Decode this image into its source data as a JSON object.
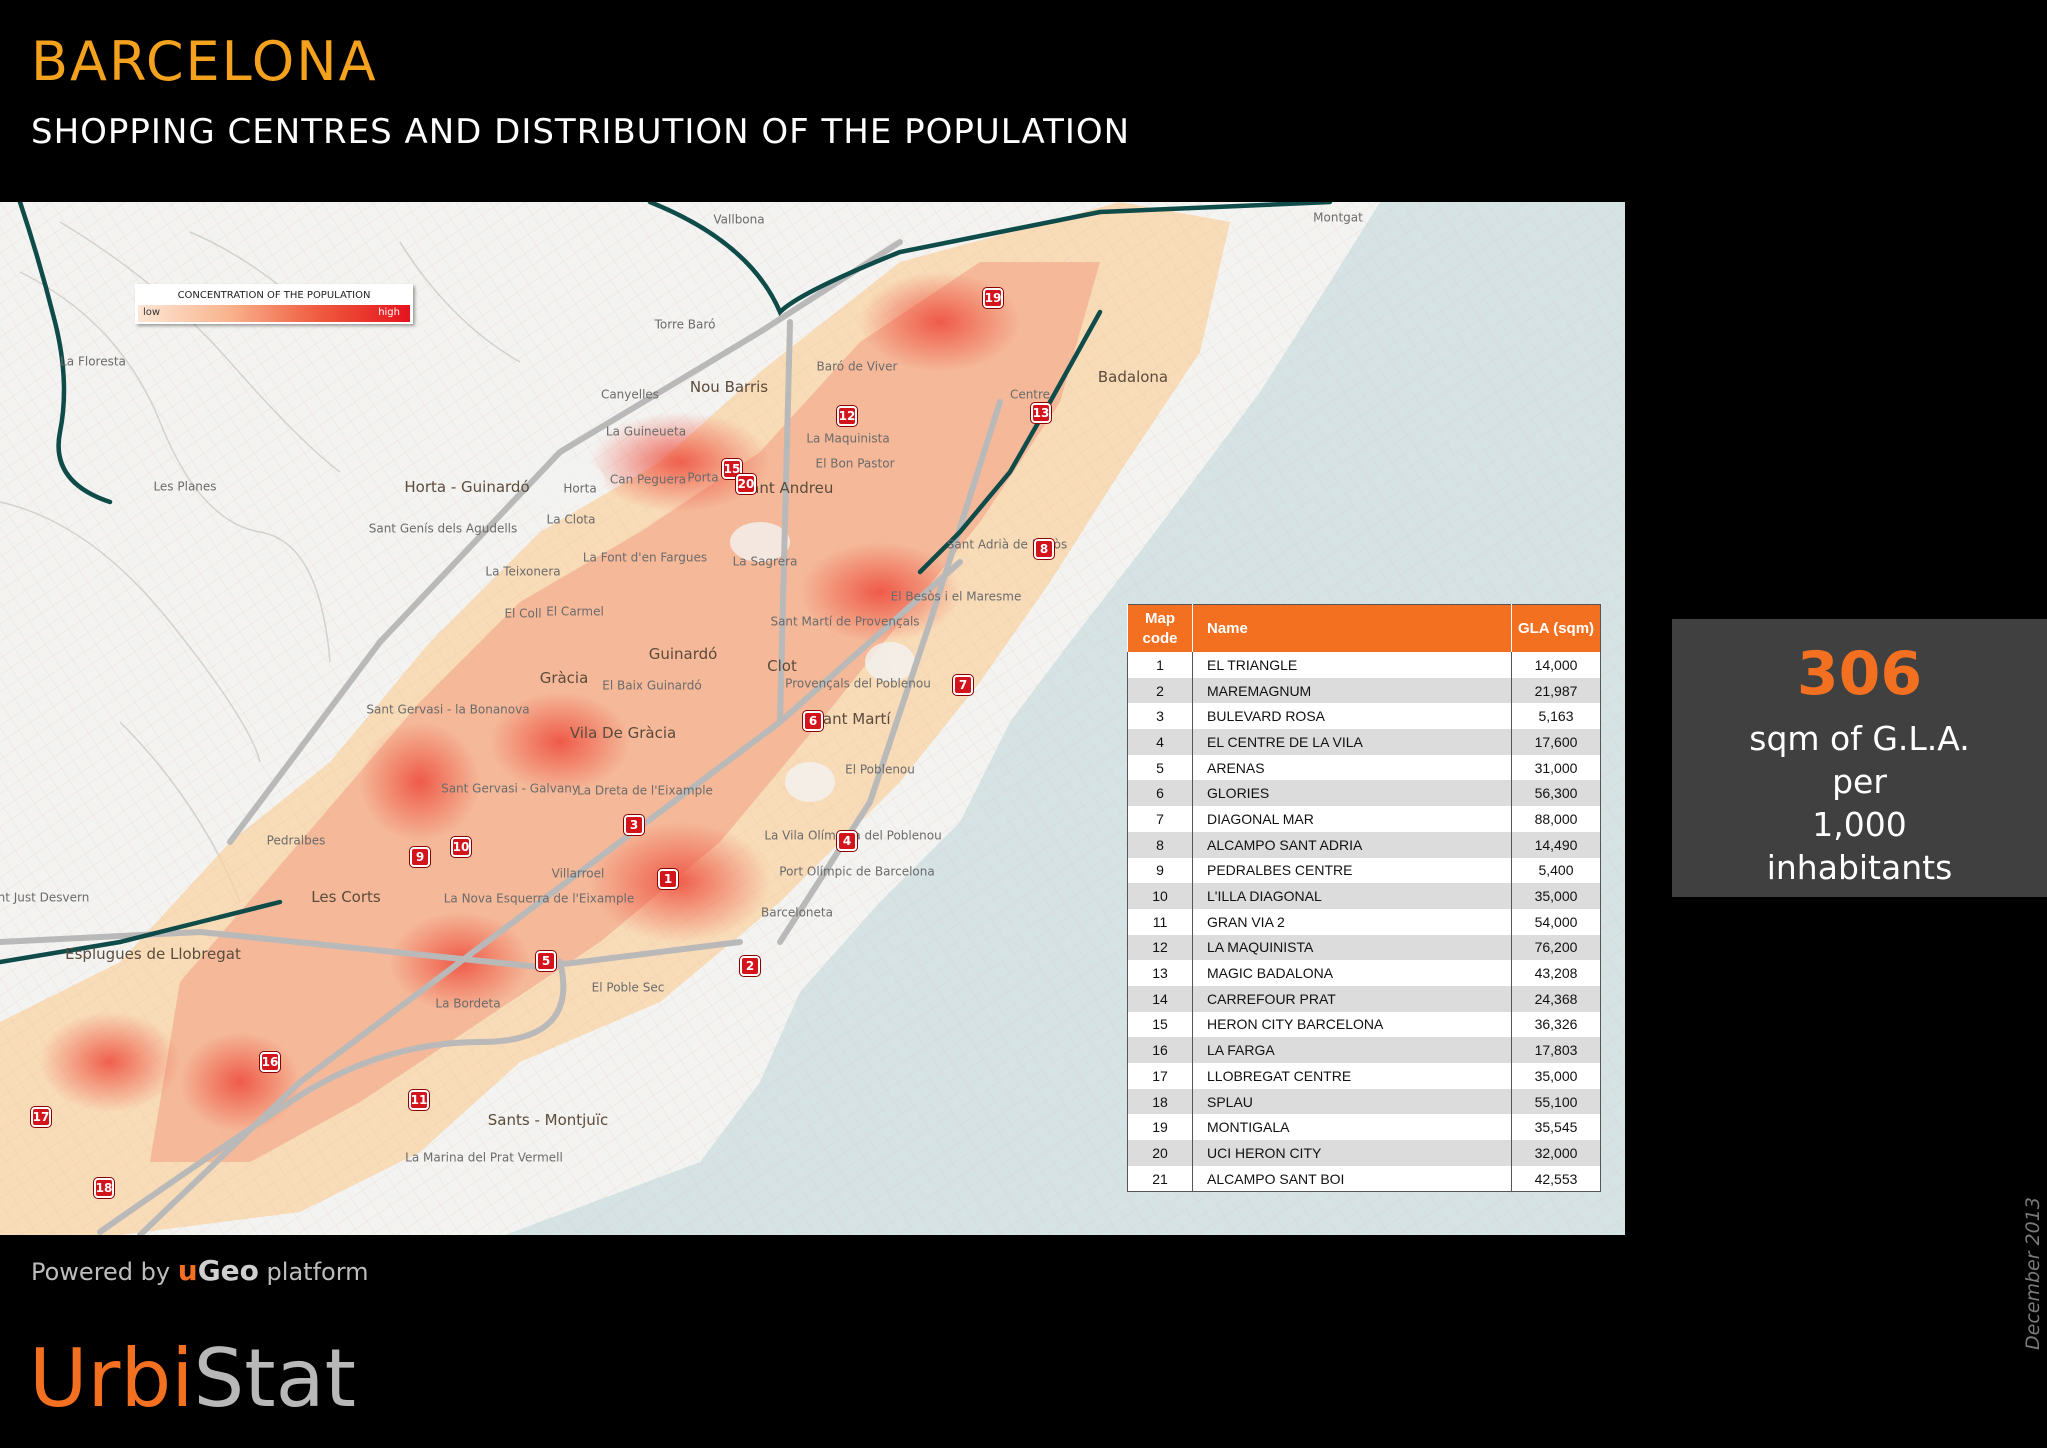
{
  "header": {
    "title": "BARCELONA",
    "subtitle": "SHOPPING CENTRES AND DISTRIBUTION OF THE POPULATION"
  },
  "legend": {
    "title": "CONCENTRATION OF THE POPULATION",
    "low": "low",
    "high": "high",
    "colors": [
      "#fde7d6",
      "#f8b48e",
      "#ef5a3e",
      "#e5131d"
    ]
  },
  "map": {
    "colors": {
      "sea": "#d5e3e5",
      "land": "#f3f3f1",
      "highway": "#0e4b49",
      "marker": "#d4141c"
    },
    "markers": [
      "1",
      "2",
      "3",
      "4",
      "5",
      "6",
      "7",
      "8",
      "9",
      "10",
      "11",
      "12",
      "13",
      "15",
      "16",
      "17",
      "18",
      "19",
      "20"
    ],
    "places": [
      "Vallbona",
      "Montgat",
      "Torre Baró",
      "Badalona",
      "La Floresta",
      "Canyelles",
      "Nou Barris",
      "Centre",
      "La Guineueta",
      "La Maquinista",
      "El Bon Pastor",
      "Baró de Viver",
      "Horta - Guinardó",
      "Les Planes",
      "Can Peguera",
      "Porta",
      "Sant Andreu",
      "Horta",
      "La Clota",
      "Sant Genís dels Agudells",
      "La Teixonera",
      "La Font d'en Fargues",
      "La Sagrera",
      "Sant Adrià de Besòs",
      "El Besòs i el Maresme",
      "Sant Martí de Provençals",
      "El Coll",
      "El Carmel",
      "Guinardó",
      "Clot",
      "Provençals del Poblenou",
      "Gràcia",
      "El Baix Guinardó",
      "Sant Gervasi - la Bonanova",
      "Vila De Gràcia",
      "Sant Martí",
      "El Poblenou",
      "Sant Gervasi - Galvany",
      "La Dreta de l'Eixample",
      "La Vila Olímpica del Poblenou",
      "Pedralbes",
      "Les Corts",
      "Villarroel",
      "Port Olímpic de Barcelona",
      "Sant Just Desvern",
      "La Nova Esquerra de l'Eixample",
      "Barceloneta",
      "Esplugues de Llobregat",
      "El Poble Sec",
      "La Bordeta",
      "Sants - Montjuïc",
      "La Marina del Prat Vermell"
    ]
  },
  "table": {
    "headers": {
      "code": "Map code",
      "name": "Name",
      "gla": "GLA (sqm)"
    },
    "rows": [
      {
        "code": "1",
        "name": "EL TRIANGLE",
        "gla": "14,000"
      },
      {
        "code": "2",
        "name": "MAREMAGNUM",
        "gla": "21,987"
      },
      {
        "code": "3",
        "name": "BULEVARD ROSA",
        "gla": "5,163"
      },
      {
        "code": "4",
        "name": "EL CENTRE DE LA VILA",
        "gla": "17,600"
      },
      {
        "code": "5",
        "name": "ARENAS",
        "gla": "31,000"
      },
      {
        "code": "6",
        "name": "GLORIES",
        "gla": "56,300"
      },
      {
        "code": "7",
        "name": "DIAGONAL MAR",
        "gla": "88,000"
      },
      {
        "code": "8",
        "name": "ALCAMPO SANT ADRIA",
        "gla": "14,490"
      },
      {
        "code": "9",
        "name": "PEDRALBES CENTRE",
        "gla": "5,400"
      },
      {
        "code": "10",
        "name": "L'ILLA DIAGONAL",
        "gla": "35,000"
      },
      {
        "code": "11",
        "name": "GRAN VIA 2",
        "gla": "54,000"
      },
      {
        "code": "12",
        "name": "LA MAQUINISTA",
        "gla": "76,200"
      },
      {
        "code": "13",
        "name": "MAGIC BADALONA",
        "gla": "43,208"
      },
      {
        "code": "14",
        "name": "CARREFOUR PRAT",
        "gla": "24,368"
      },
      {
        "code": "15",
        "name": "HERON CITY BARCELONA",
        "gla": "36,326"
      },
      {
        "code": "16",
        "name": "LA FARGA",
        "gla": "17,803"
      },
      {
        "code": "17",
        "name": "LLOBREGAT CENTRE",
        "gla": "35,000"
      },
      {
        "code": "18",
        "name": "SPLAU",
        "gla": "55,100"
      },
      {
        "code": "19",
        "name": "MONTIGALA",
        "gla": "35,545"
      },
      {
        "code": "20",
        "name": "UCI HERON CITY",
        "gla": "32,000"
      },
      {
        "code": "21",
        "name": "ALCAMPO SANT BOI",
        "gla": "42,553"
      }
    ]
  },
  "stat": {
    "value": "306",
    "line1": "sqm of G.L.A.",
    "line2": "per",
    "line3": "1,000",
    "line4": "inhabitants"
  },
  "footer": {
    "powered_prefix": "Powered by",
    "ugeo_u": "u",
    "ugeo_rest": "Geo",
    "powered_suffix": "platform",
    "brand_urbi": "Urbi",
    "brand_stat": "Stat",
    "date": "December 2013"
  }
}
